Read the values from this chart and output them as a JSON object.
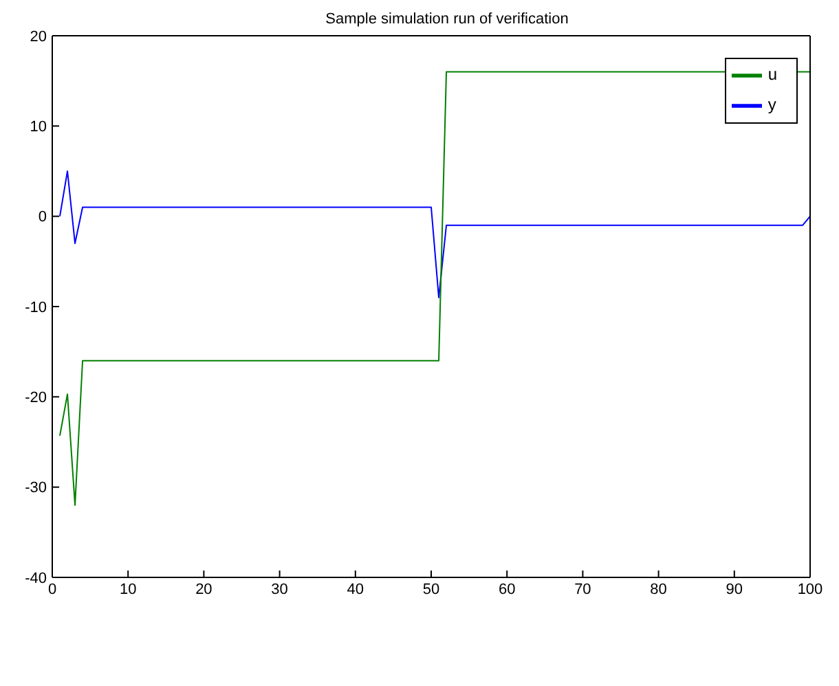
{
  "chart_data": {
    "type": "line",
    "title": "Sample simulation run of verification",
    "x": [
      1,
      2,
      3,
      4,
      50,
      51,
      52,
      99,
      100
    ],
    "series": [
      {
        "name": "y",
        "color": "#0000ff",
        "values": [
          0,
          5,
          -3,
          1,
          1,
          -9,
          -1,
          -1,
          0
        ]
      },
      {
        "name": "u",
        "color": "#008000",
        "values": [
          -24.3,
          -19.7,
          -32,
          -16,
          -16,
          -16,
          16,
          16,
          16
        ]
      }
    ],
    "xlim": [
      0,
      100
    ],
    "xticks": [
      0,
      10,
      20,
      30,
      40,
      50,
      60,
      70,
      80,
      90,
      100
    ],
    "ylim": [
      -40,
      20
    ],
    "yticks": [
      -40,
      -30,
      -20,
      -10,
      0,
      10,
      20
    ],
    "legend": "top right",
    "marker": "none",
    "line_style": "solid"
  }
}
